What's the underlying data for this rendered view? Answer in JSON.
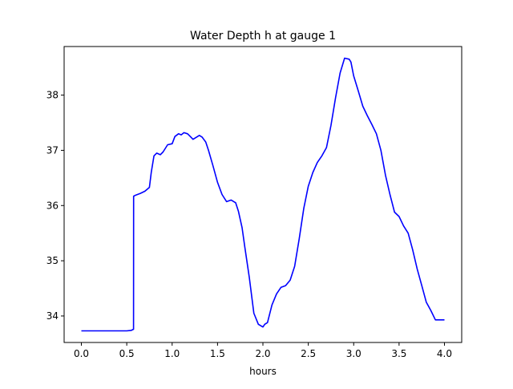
{
  "chart_data": {
    "type": "line",
    "title": "Water Depth h at gauge 1",
    "xlabel": "hours",
    "ylabel": "",
    "xlim": [
      -0.19,
      4.19
    ],
    "ylim": [
      33.52,
      38.88
    ],
    "xticks": [
      0.0,
      0.5,
      1.0,
      1.5,
      2.0,
      2.5,
      3.0,
      3.5,
      4.0
    ],
    "xtick_labels": [
      "0.0",
      "0.5",
      "1.0",
      "1.5",
      "2.0",
      "2.5",
      "3.0",
      "3.5",
      "4.0"
    ],
    "yticks": [
      34,
      35,
      36,
      37,
      38
    ],
    "ytick_labels": [
      "34",
      "35",
      "36",
      "37",
      "38"
    ],
    "grid": false,
    "legend": "none",
    "series": [
      {
        "color": "#0000ff",
        "x": [
          0.0,
          0.1,
          0.2,
          0.3,
          0.4,
          0.5,
          0.55,
          0.575,
          0.576,
          0.6,
          0.65,
          0.7,
          0.75,
          0.77,
          0.8,
          0.83,
          0.87,
          0.9,
          0.95,
          1.0,
          1.03,
          1.07,
          1.1,
          1.13,
          1.17,
          1.2,
          1.23,
          1.27,
          1.3,
          1.33,
          1.37,
          1.4,
          1.45,
          1.5,
          1.55,
          1.6,
          1.65,
          1.7,
          1.73,
          1.77,
          1.8,
          1.85,
          1.9,
          1.95,
          2.0,
          2.02,
          2.05,
          2.1,
          2.15,
          2.2,
          2.25,
          2.3,
          2.35,
          2.4,
          2.45,
          2.5,
          2.55,
          2.6,
          2.65,
          2.7,
          2.75,
          2.8,
          2.85,
          2.9,
          2.95,
          2.97,
          3.0,
          3.05,
          3.1,
          3.15,
          3.2,
          3.25,
          3.3,
          3.35,
          3.4,
          3.45,
          3.5,
          3.55,
          3.6,
          3.65,
          3.7,
          3.75,
          3.8,
          3.85,
          3.9,
          3.95,
          4.0
        ],
        "y": [
          33.73,
          33.73,
          33.73,
          33.73,
          33.73,
          33.73,
          33.74,
          33.76,
          36.17,
          36.19,
          36.22,
          36.26,
          36.33,
          36.6,
          36.9,
          36.95,
          36.92,
          36.97,
          37.1,
          37.12,
          37.25,
          37.3,
          37.28,
          37.32,
          37.3,
          37.25,
          37.2,
          37.24,
          37.27,
          37.24,
          37.15,
          37.0,
          36.72,
          36.42,
          36.2,
          36.07,
          36.1,
          36.05,
          35.9,
          35.6,
          35.25,
          34.7,
          34.05,
          33.85,
          33.8,
          33.85,
          33.88,
          34.2,
          34.4,
          34.52,
          34.55,
          34.65,
          34.9,
          35.4,
          35.95,
          36.35,
          36.6,
          36.78,
          36.9,
          37.05,
          37.45,
          37.95,
          38.4,
          38.67,
          38.65,
          38.6,
          38.35,
          38.08,
          37.8,
          37.63,
          37.47,
          37.3,
          37.0,
          36.55,
          36.2,
          35.88,
          35.8,
          35.63,
          35.5,
          35.2,
          34.85,
          34.55,
          34.25,
          34.1,
          33.93,
          33.93,
          33.93
        ]
      }
    ]
  }
}
